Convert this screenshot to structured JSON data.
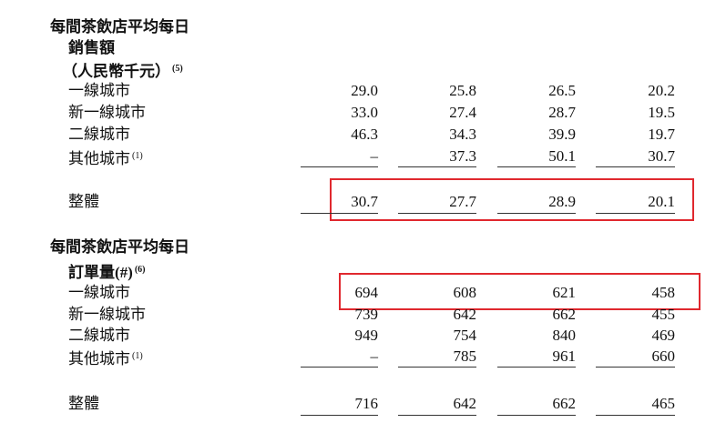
{
  "sections": [
    {
      "title_lines": [
        "每間茶飲店平均每日",
        "銷售額",
        "（人民幣千元）"
      ],
      "title_note": "(5)",
      "rows": [
        {
          "label": "一線城市",
          "values": [
            "29.0",
            "25.8",
            "26.5",
            "20.2"
          ]
        },
        {
          "label": "新一線城市",
          "values": [
            "33.0",
            "27.4",
            "28.7",
            "19.5"
          ]
        },
        {
          "label": "二線城市",
          "values": [
            "46.3",
            "34.3",
            "39.9",
            "19.7"
          ]
        },
        {
          "label": "其他城市",
          "note": "(1)",
          "values": [
            "–",
            "37.3",
            "50.1",
            "30.7"
          ]
        }
      ],
      "total": {
        "label": "整體",
        "values": [
          "30.7",
          "27.7",
          "28.9",
          "20.1"
        ]
      }
    },
    {
      "title_lines": [
        "每間茶飲店平均每日",
        "訂單量(#)"
      ],
      "title_note": "(6)",
      "rows": [
        {
          "label": "一線城市",
          "values": [
            "694",
            "608",
            "621",
            "458"
          ]
        },
        {
          "label": "新一線城市",
          "values": [
            "739",
            "642",
            "662",
            "455"
          ]
        },
        {
          "label": "二線城市",
          "values": [
            "949",
            "754",
            "840",
            "469"
          ]
        },
        {
          "label": "其他城市",
          "note": "(1)",
          "values": [
            "–",
            "785",
            "961",
            "660"
          ]
        }
      ],
      "total": {
        "label": "整體",
        "values": [
          "716",
          "642",
          "662",
          "465"
        ]
      }
    }
  ]
}
